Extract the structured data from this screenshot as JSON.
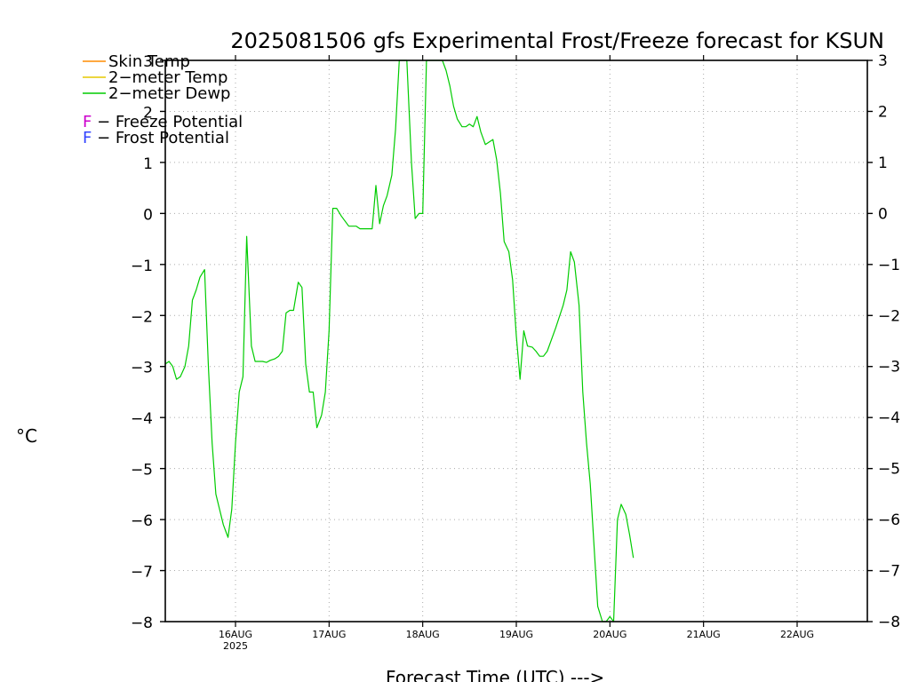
{
  "chart_data": {
    "type": "line",
    "title": "2025081506 gfs Experimental Frost/Freeze forecast for KSUN",
    "ylabel": "°C",
    "xlabel": "Forecast Time (UTC) --->",
    "ylim": [
      -8,
      3
    ],
    "xlim_days": [
      15.25,
      22.75
    ],
    "y_ticks": [
      -8,
      -7,
      -6,
      -5,
      -4,
      -3,
      -2,
      -1,
      0,
      1,
      2,
      3
    ],
    "y_tick_labels": [
      "−8",
      "−7",
      "−6",
      "−5",
      "−4",
      "−3",
      "−2",
      "−1",
      "0",
      "1",
      "2",
      "3"
    ],
    "x_ticks": [
      {
        "day": 16,
        "label": "16AUG"
      },
      {
        "day": 17,
        "label": "17AUG"
      },
      {
        "day": 18,
        "label": "18AUG"
      },
      {
        "day": 19,
        "label": "19AUG"
      },
      {
        "day": 20,
        "label": "20AUG"
      },
      {
        "day": 21,
        "label": "21AUG"
      },
      {
        "day": 22,
        "label": "22AUG"
      }
    ],
    "x_year_label": "2025",
    "grid": true,
    "legend": [
      {
        "label": "Skin Temp",
        "color": "#ff8c00"
      },
      {
        "label": "2−meter Temp",
        "color": "#e6c800"
      },
      {
        "label": "2−meter Dewp",
        "color": "#00cc00"
      }
    ],
    "potential_legend": [
      {
        "letter": "F",
        "text": " − Freeze Potential",
        "color": "#cc00cc"
      },
      {
        "letter": "F",
        "text": " − Frost Potential",
        "color": "#3344ff"
      }
    ],
    "series": [
      {
        "name": "2−meter Dewp",
        "color": "#00cc00",
        "points": [
          [
            15.25,
            -2.95
          ],
          [
            15.29,
            -2.9
          ],
          [
            15.33,
            -3.0
          ],
          [
            15.37,
            -3.25
          ],
          [
            15.41,
            -3.2
          ],
          [
            15.46,
            -3.0
          ],
          [
            15.5,
            -2.6
          ],
          [
            15.54,
            -1.7
          ],
          [
            15.58,
            -1.5
          ],
          [
            15.62,
            -1.25
          ],
          [
            15.67,
            -1.1
          ],
          [
            15.71,
            -3.0
          ],
          [
            15.75,
            -4.5
          ],
          [
            15.79,
            -5.5
          ],
          [
            15.83,
            -5.8
          ],
          [
            15.87,
            -6.1
          ],
          [
            15.92,
            -6.35
          ],
          [
            15.96,
            -5.8
          ],
          [
            16.0,
            -4.5
          ],
          [
            16.04,
            -3.5
          ],
          [
            16.08,
            -3.2
          ],
          [
            16.12,
            -0.45
          ],
          [
            16.17,
            -2.6
          ],
          [
            16.21,
            -2.9
          ],
          [
            16.25,
            -2.9
          ],
          [
            16.29,
            -2.9
          ],
          [
            16.33,
            -2.92
          ],
          [
            16.37,
            -2.88
          ],
          [
            16.42,
            -2.85
          ],
          [
            16.46,
            -2.8
          ],
          [
            16.5,
            -2.7
          ],
          [
            16.54,
            -1.95
          ],
          [
            16.58,
            -1.9
          ],
          [
            16.62,
            -1.9
          ],
          [
            16.67,
            -1.35
          ],
          [
            16.71,
            -1.45
          ],
          [
            16.75,
            -2.95
          ],
          [
            16.79,
            -3.5
          ],
          [
            16.83,
            -3.5
          ],
          [
            16.87,
            -4.2
          ],
          [
            16.92,
            -3.95
          ],
          [
            16.96,
            -3.5
          ],
          [
            17.0,
            -2.3
          ],
          [
            17.04,
            0.1
          ],
          [
            17.08,
            0.1
          ],
          [
            17.13,
            -0.05
          ],
          [
            17.21,
            -0.25
          ],
          [
            17.25,
            -0.25
          ],
          [
            17.29,
            -0.25
          ],
          [
            17.33,
            -0.3
          ],
          [
            17.42,
            -0.3
          ],
          [
            17.46,
            -0.3
          ],
          [
            17.5,
            0.55
          ],
          [
            17.54,
            -0.2
          ],
          [
            17.58,
            0.15
          ],
          [
            17.62,
            0.35
          ],
          [
            17.67,
            0.75
          ],
          [
            17.71,
            1.65
          ],
          [
            17.75,
            3.0
          ],
          [
            17.79,
            3.0
          ],
          [
            17.83,
            3.0
          ],
          [
            17.88,
            1.0
          ],
          [
            17.92,
            -0.1
          ],
          [
            17.96,
            0.0
          ],
          [
            18.0,
            0.0
          ],
          [
            18.04,
            3.0
          ],
          [
            18.08,
            3.0
          ],
          [
            18.12,
            3.0
          ],
          [
            18.17,
            3.0
          ],
          [
            18.21,
            3.0
          ],
          [
            18.25,
            2.8
          ],
          [
            18.29,
            2.5
          ],
          [
            18.33,
            2.1
          ],
          [
            18.37,
            1.85
          ],
          [
            18.42,
            1.7
          ],
          [
            18.46,
            1.7
          ],
          [
            18.5,
            1.75
          ],
          [
            18.54,
            1.7
          ],
          [
            18.58,
            1.9
          ],
          [
            18.62,
            1.6
          ],
          [
            18.67,
            1.35
          ],
          [
            18.71,
            1.4
          ],
          [
            18.75,
            1.45
          ],
          [
            18.79,
            1.05
          ],
          [
            18.83,
            0.4
          ],
          [
            18.87,
            -0.55
          ],
          [
            18.92,
            -0.75
          ],
          [
            18.96,
            -1.3
          ],
          [
            19.0,
            -2.4
          ],
          [
            19.04,
            -3.25
          ],
          [
            19.08,
            -2.3
          ],
          [
            19.12,
            -2.6
          ],
          [
            19.17,
            -2.62
          ],
          [
            19.21,
            -2.7
          ],
          [
            19.25,
            -2.8
          ],
          [
            19.29,
            -2.8
          ],
          [
            19.33,
            -2.7
          ],
          [
            19.42,
            -2.25
          ],
          [
            19.5,
            -1.8
          ],
          [
            19.54,
            -1.5
          ],
          [
            19.58,
            -0.75
          ],
          [
            19.62,
            -0.95
          ],
          [
            19.67,
            -1.8
          ],
          [
            19.71,
            -3.5
          ],
          [
            19.75,
            -4.5
          ],
          [
            19.79,
            -5.3
          ],
          [
            19.83,
            -6.5
          ],
          [
            19.87,
            -7.7
          ],
          [
            19.92,
            -8.05
          ],
          [
            19.96,
            -8.05
          ],
          [
            20.0,
            -7.9
          ],
          [
            20.04,
            -8.05
          ],
          [
            20.08,
            -6.0
          ],
          [
            20.12,
            -5.7
          ],
          [
            20.17,
            -5.9
          ],
          [
            20.21,
            -6.3
          ],
          [
            20.25,
            -6.75
          ]
        ]
      }
    ]
  }
}
